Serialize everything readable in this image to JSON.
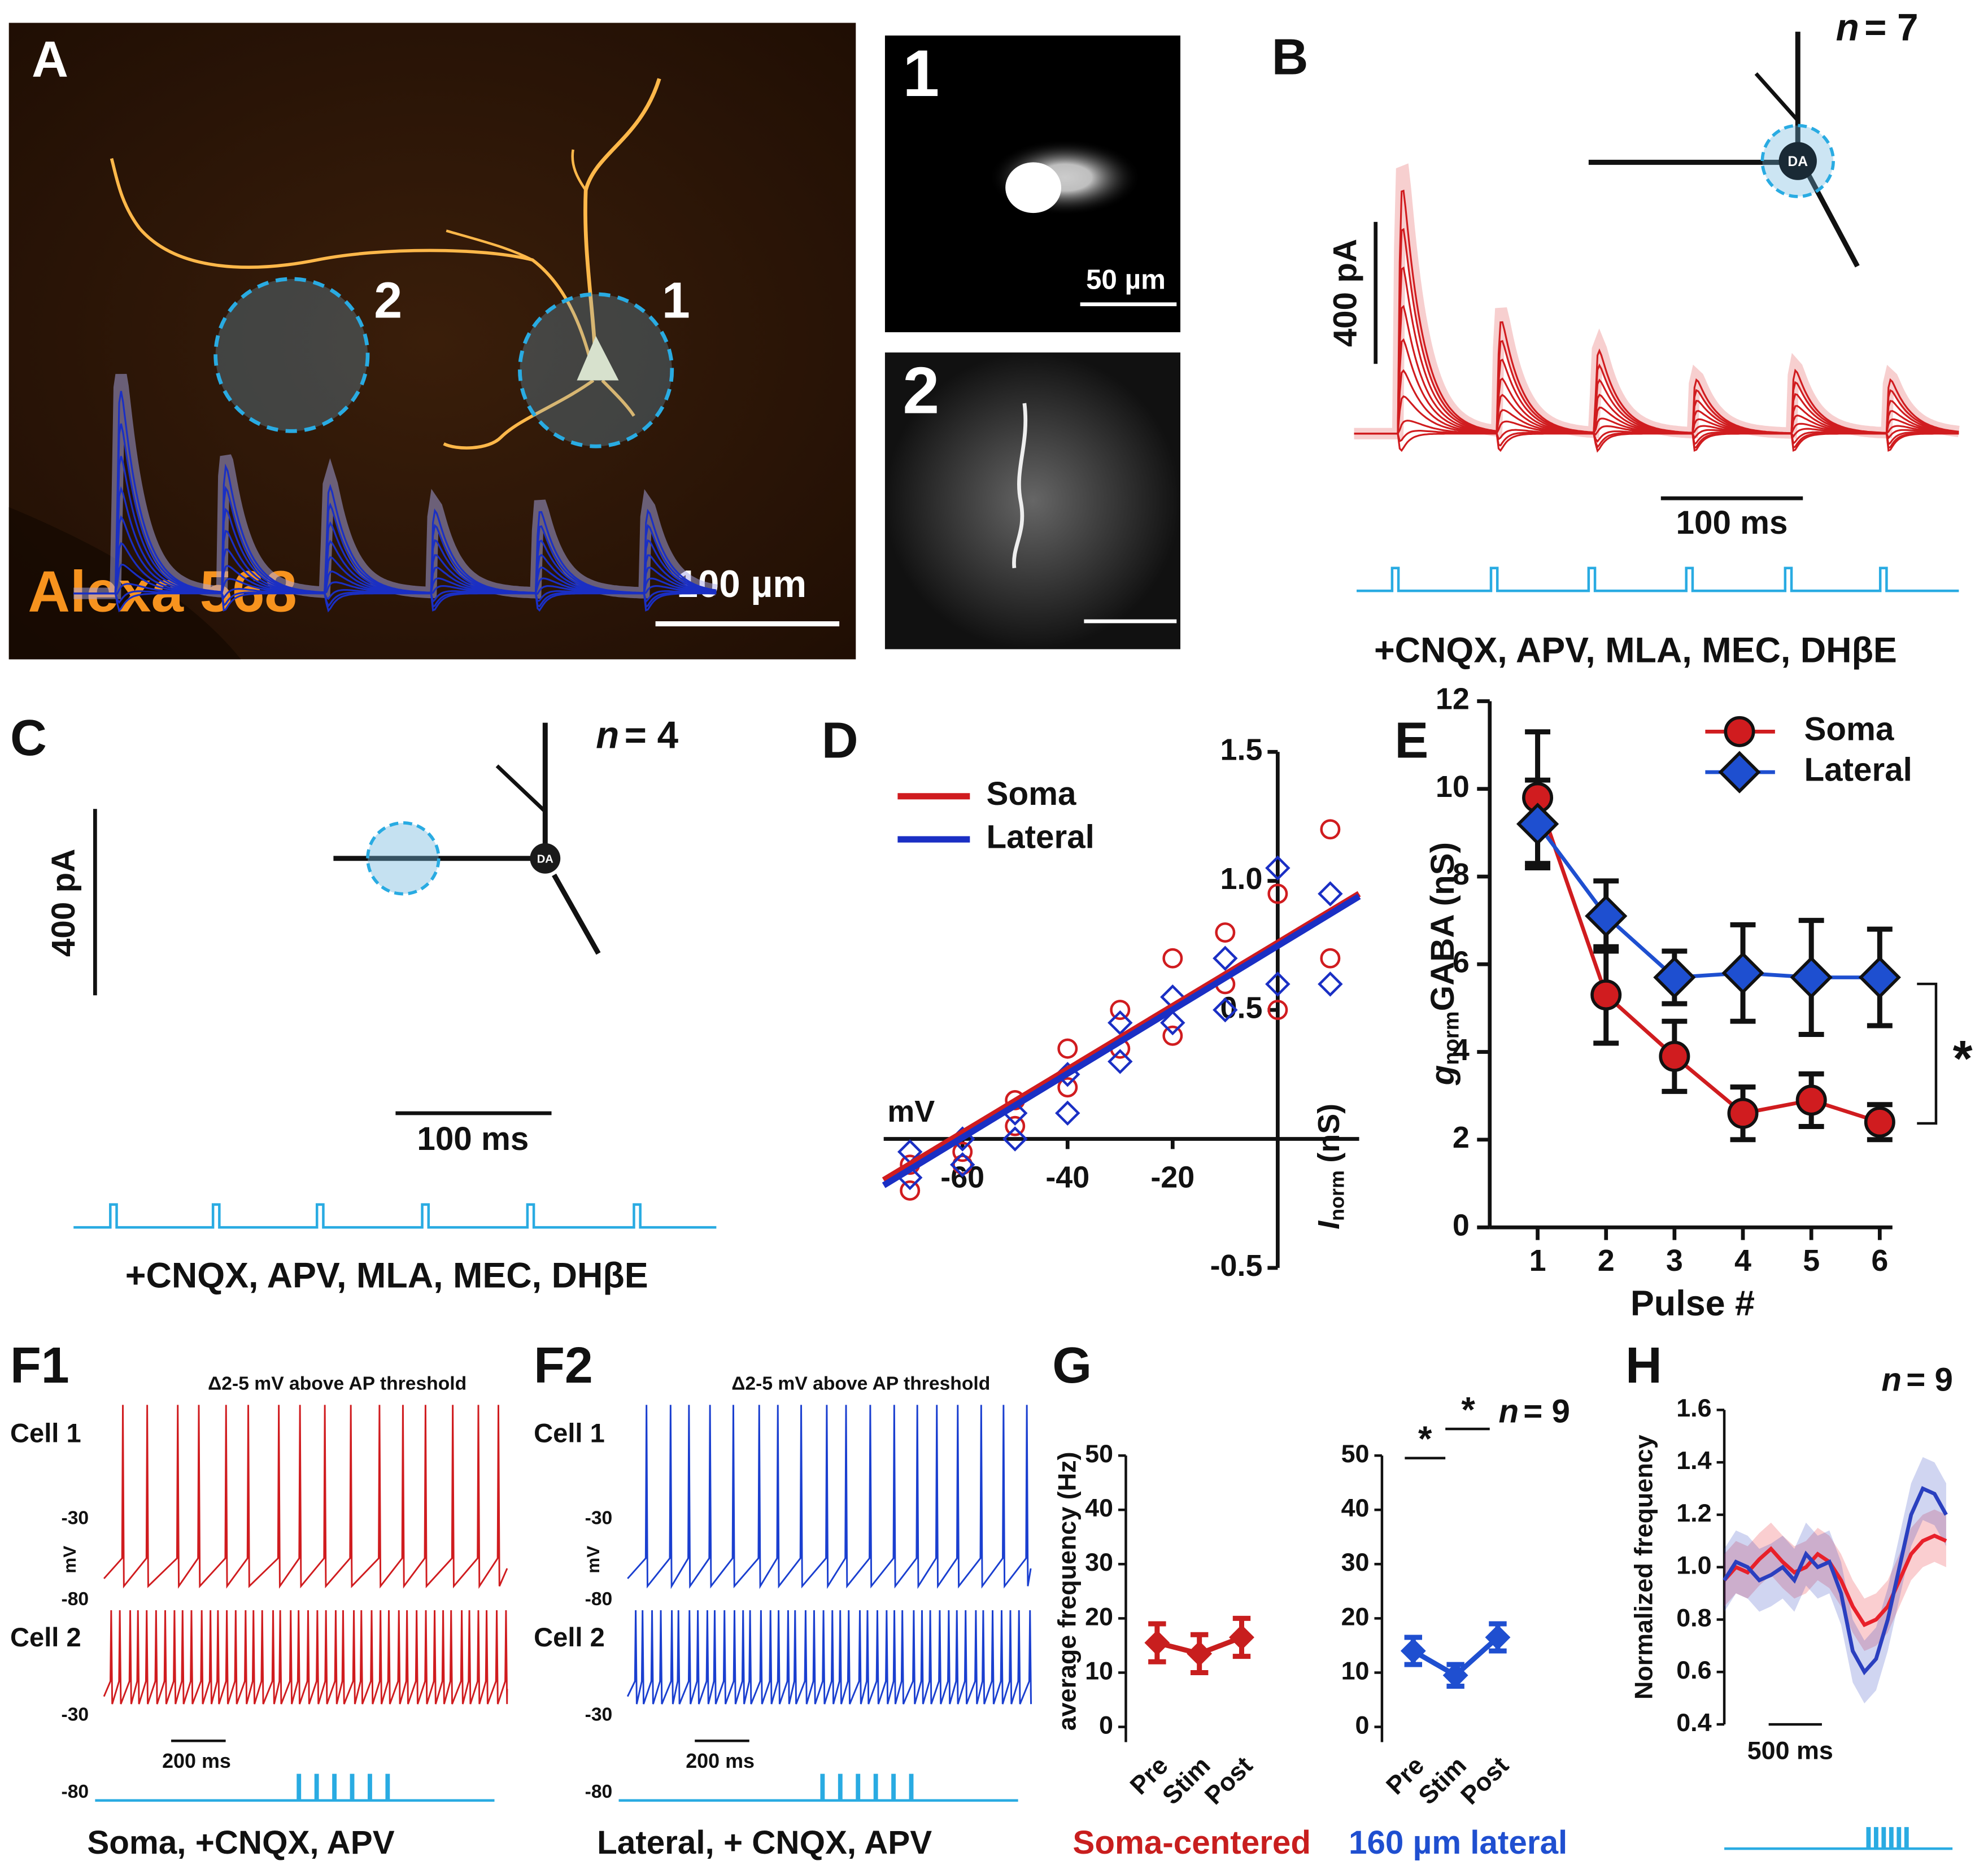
{
  "panel_a": {
    "label": "A",
    "stain": "Alexa 568",
    "site_1": "1",
    "site_2": "2",
    "scale_bar": "100 µm",
    "inset_1": "1",
    "inset_2": "2",
    "inset_scale_bar": "50 µm"
  },
  "panel_b": {
    "label": "B",
    "n_symbol": "n",
    "n_count": "= 7",
    "cell": "DA",
    "scale_y": "400 pA",
    "scale_x": "100 ms",
    "condition": "+CNQX, APV, MLA, MEC, DHβE"
  },
  "panel_c": {
    "label": "C",
    "n_symbol": "n",
    "n_count": "= 4",
    "cell": "DA",
    "scale_y": "400 pA",
    "scale_x": "100 ms",
    "condition": "+CNQX, APV, MLA, MEC, DHβE"
  },
  "panel_f1": {
    "label": "F1",
    "note": "Δ2-5 mV above AP threshold",
    "cell_1": "Cell 1",
    "cell_2": "Cell 2",
    "tick_high_1": "-30",
    "tick_low_1": "-80",
    "unit": "mV",
    "tick_high_2": "-30",
    "tick_low_2": "-80",
    "scale_x": "200 ms",
    "condition": "Soma, +CNQX, APV"
  },
  "panel_f2": {
    "label": "F2",
    "note": "Δ2-5 mV above AP threshold",
    "cell_1": "Cell 1",
    "cell_2": "Cell 2",
    "tick_high_1": "-30",
    "tick_low_1": "-80",
    "unit": "mV",
    "tick_high_2": "-30",
    "tick_low_2": "-80",
    "scale_x": "200 ms",
    "condition": "Lateral, + CNQX, APV"
  },
  "panel_g": {
    "label": "G",
    "n_symbol": "n",
    "n_count": "= 9",
    "caption_soma": "Soma-centered",
    "caption_lateral": "160 µm lateral"
  },
  "panel_h": {
    "label": "H",
    "n_symbol": "n",
    "n_count": "= 9",
    "scale_x": "500 ms"
  },
  "chart_data": [
    {
      "panel": "D",
      "type": "scatter",
      "xlabel": "mV",
      "ylabel_main": "I",
      "ylabel_sub": "norm",
      "ylabel_unit": "(nS)",
      "xlim": [
        -75,
        15.5
      ],
      "ylim": [
        -0.5,
        1.5
      ],
      "xticks": [
        -60,
        -40,
        -20
      ],
      "yticks": [
        -0.5,
        0.5,
        {
          "value": 1,
          "label": "1.0"
        },
        1.5
      ],
      "legend": "top-left",
      "series": [
        {
          "name": "Soma",
          "color": "#d01c1f",
          "x": [
            -70,
            -70,
            -60,
            -60,
            -50,
            -50,
            -40,
            -40,
            -30,
            -30,
            -20,
            -20,
            -10,
            -10,
            0,
            0,
            10,
            10
          ],
          "values": [
            -0.2,
            -0.1,
            -0.05,
            -0.1,
            0.05,
            0.15,
            0.2,
            0.35,
            0.35,
            0.5,
            0.4,
            0.7,
            0.6,
            0.8,
            0.5,
            0.95,
            0.7,
            1.2
          ],
          "fit": [
            -0.16,
            0.95
          ]
        },
        {
          "name": "Lateral",
          "color": "#1a2fc4",
          "x": [
            -70,
            -70,
            -60,
            -60,
            -50,
            -50,
            -40,
            -40,
            -30,
            -30,
            -20,
            -20,
            -10,
            -10,
            0,
            0,
            10,
            10
          ],
          "values": [
            -0.15,
            -0.05,
            -0.1,
            0,
            0,
            0.1,
            0.1,
            0.25,
            0.3,
            0.45,
            0.45,
            0.55,
            0.5,
            0.7,
            0.6,
            1.05,
            0.6,
            0.95
          ],
          "fit": [
            -0.18,
            0.94
          ]
        }
      ]
    },
    {
      "panel": "E",
      "type": "line",
      "xlabel": "Pulse #",
      "ylabel_main": "g",
      "ylabel_sub": "norm",
      "ylabel_unit": "GABA (nS)",
      "x": [
        1,
        2,
        3,
        4,
        5,
        6
      ],
      "xlim": [
        0.3,
        6.6
      ],
      "ylim": [
        0,
        12
      ],
      "xticks": [
        1,
        2,
        3,
        4,
        5,
        6
      ],
      "yticks": [
        0,
        2,
        4,
        6,
        8,
        10,
        12
      ],
      "legend": "top-right",
      "significance": "*",
      "series": [
        {
          "name": "Soma",
          "color": "#d01c1f",
          "marker": "circle",
          "values": [
            9.8,
            5.3,
            3.9,
            2.6,
            2.9,
            2.4
          ],
          "errors": [
            1.5,
            1.1,
            0.8,
            0.6,
            0.6,
            0.4
          ]
        },
        {
          "name": "Lateral",
          "color": "#1e4fd0",
          "marker": "diamond",
          "values": [
            9.2,
            7.1,
            5.7,
            5.8,
            5.7,
            5.7
          ],
          "errors": [
            1,
            0.8,
            0.6,
            1.1,
            1.3,
            1.1
          ]
        }
      ]
    },
    {
      "type": "line",
      "ylabel": "average frequency (Hz)",
      "categories": [
        "Pre",
        "Stim",
        "Post"
      ],
      "ylim": [
        0,
        50
      ],
      "yticks": [
        0,
        10,
        20,
        30,
        40,
        50
      ],
      "series": [
        {
          "color": "#c81e1e",
          "values": [
            15.5,
            13.5,
            16.5
          ],
          "errors": [
            3.5,
            3.5,
            3.5
          ]
        }
      ]
    },
    {
      "type": "line",
      "categories": [
        "Pre",
        "Stim",
        "Post"
      ],
      "ylim": [
        0,
        50
      ],
      "yticks": [
        0,
        10,
        20,
        30,
        40,
        50
      ],
      "significance": [
        "*",
        "*"
      ],
      "series": [
        {
          "color": "#1f4fd0",
          "values": [
            14,
            9.5,
            16.5
          ],
          "errors": [
            2.5,
            2,
            2.5
          ]
        }
      ]
    },
    {
      "type": "line",
      "ylabel": "Normalized frequency",
      "ylim": [
        0.4,
        1.6
      ],
      "yticks": [
        0.4,
        0.6,
        0.8,
        {
          "value": 1,
          "label": "1.0"
        },
        1.2,
        1.4,
        1.6
      ],
      "series": [
        {
          "color": "#e8202a",
          "values": [
            0.95,
            1,
            0.98,
            1.03,
            1.07,
            1.02,
            0.98,
            1,
            1.05,
            1.02,
            0.95,
            0.85,
            0.78,
            0.8,
            0.85,
            0.95,
            1.05,
            1.1,
            1.12,
            1.1
          ],
          "errors": [
            0.1,
            0.1,
            0.1,
            0.1,
            0.1,
            0.1,
            0.1,
            0.1,
            0.1,
            0.1,
            0.1,
            0.1,
            0.1,
            0.1,
            0.1,
            0.1,
            0.1,
            0.1,
            0.1,
            0.1
          ]
        },
        {
          "color": "#2a3fbf",
          "values": [
            0.95,
            1.02,
            1,
            0.95,
            0.97,
            1,
            0.95,
            1.05,
            1,
            1.02,
            0.9,
            0.68,
            0.6,
            0.65,
            0.8,
            1,
            1.2,
            1.3,
            1.28,
            1.2
          ],
          "errors": [
            0.12,
            0.12,
            0.12,
            0.12,
            0.12,
            0.12,
            0.12,
            0.12,
            0.12,
            0.12,
            0.12,
            0.12,
            0.12,
            0.12,
            0.12,
            0.12,
            0.12,
            0.12,
            0.12,
            0.12
          ]
        }
      ]
    }
  ]
}
